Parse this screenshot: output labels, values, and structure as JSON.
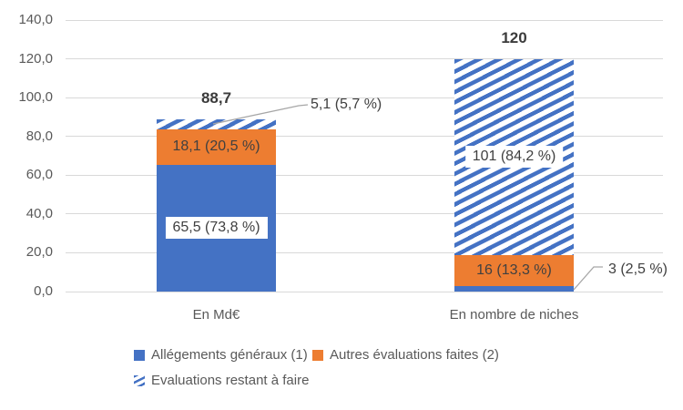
{
  "chart_data": {
    "type": "bar",
    "stacked": true,
    "title": "",
    "categories": [
      "En Md€",
      "En nombre de niches"
    ],
    "series": [
      {
        "name": "Allégements généraux (1)",
        "color": "#4472C4",
        "pattern": "solid",
        "values": [
          65.5,
          3
        ]
      },
      {
        "name": "Autres évaluations faites (2)",
        "color": "#ED7D31",
        "pattern": "solid",
        "values": [
          18.1,
          16
        ]
      },
      {
        "name": "Evaluations restant à faire",
        "color": "#4472C4",
        "pattern": "diagonal-hatch",
        "values": [
          5.1,
          101
        ]
      }
    ],
    "totals": [
      {
        "label": "88,7",
        "value": 88.7
      },
      {
        "label": "120",
        "value": 120
      }
    ],
    "segment_labels": [
      {
        "bar": 0,
        "series": 0,
        "text": "65,5 (73,8 %)",
        "style": "boxed"
      },
      {
        "bar": 0,
        "series": 1,
        "text": "18,1 (20,5 %)",
        "style": "plain"
      },
      {
        "bar": 0,
        "series": 2,
        "text": "5,1 (5,7 %)",
        "style": "callout"
      },
      {
        "bar": 1,
        "series": 0,
        "text": "3 (2,5 %)",
        "style": "callout"
      },
      {
        "bar": 1,
        "series": 1,
        "text": "16 (13,3 %)",
        "style": "plain"
      },
      {
        "bar": 1,
        "series": 2,
        "text": "101 (84,2 %)",
        "style": "boxed"
      }
    ],
    "y_axis": {
      "range": [
        0,
        140
      ],
      "grid": true,
      "ticks": [
        {
          "value": 140,
          "label": "140,0"
        },
        {
          "value": 120,
          "label": "120,0"
        },
        {
          "value": 100,
          "label": "100,0"
        },
        {
          "value": 80,
          "label": "80,0"
        },
        {
          "value": 60,
          "label": "60,0"
        },
        {
          "value": 40,
          "label": "40,0"
        },
        {
          "value": 20,
          "label": "20,0"
        },
        {
          "value": 0,
          "label": "0,0"
        }
      ]
    },
    "legend": {
      "position": "bottom-left",
      "items": [
        {
          "label": "Allégements généraux (1)",
          "swatch": "solid",
          "color": "#4472C4"
        },
        {
          "label": "Autres évaluations faites (2)",
          "swatch": "solid",
          "color": "#ED7D31"
        },
        {
          "label": "Evaluations restant à faire",
          "swatch": "diagonal-hatch",
          "color": "#4472C4"
        }
      ]
    },
    "colors": {
      "grid": "#D9D9D9",
      "axis_text": "#595959",
      "label_text": "#404040",
      "total_text": "#3b3b3b",
      "leader_line": "#A6A6A6"
    }
  }
}
